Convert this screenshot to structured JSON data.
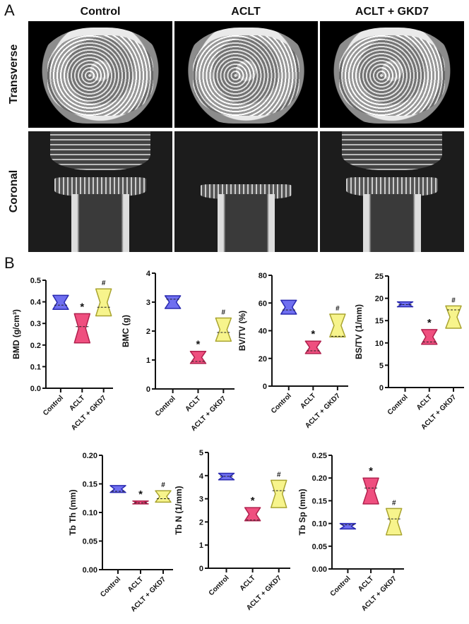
{
  "panel_a": {
    "letter": "A",
    "columns": [
      "Control",
      "ACLT",
      "ACLT + GKD7"
    ],
    "rows": [
      "Transverse",
      "Coronal"
    ]
  },
  "panel_b": {
    "letter": "B"
  },
  "colors": {
    "Control": "#6f6ff0",
    "ACLT": "#ef4f7f",
    "ACLT + GKD7": "#f7f48c"
  },
  "chart_data": [
    {
      "type": "violin",
      "ylabel": "BMD (g/cm³)",
      "categories": [
        "Control",
        "ACLT",
        "ACLT + GKD7"
      ],
      "ylim": [
        0,
        0.5
      ],
      "yticks": [
        "0.0",
        "0.1",
        "0.2",
        "0.3",
        "0.4",
        "0.5"
      ],
      "groups": [
        {
          "min": 0.365,
          "median": 0.385,
          "max": 0.43,
          "mark": ""
        },
        {
          "min": 0.21,
          "median": 0.285,
          "max": 0.345,
          "mark": "*"
        },
        {
          "min": 0.335,
          "median": 0.375,
          "max": 0.46,
          "mark": "#"
        }
      ]
    },
    {
      "type": "violin",
      "ylabel": "BMC (g)",
      "categories": [
        "Control",
        "ACLT",
        "ACLT + GKD7"
      ],
      "ylim": [
        0,
        4
      ],
      "yticks": [
        "0",
        "1",
        "2",
        "3",
        "4"
      ],
      "groups": [
        {
          "min": 2.78,
          "median": 3.1,
          "max": 3.22,
          "mark": ""
        },
        {
          "min": 0.88,
          "median": 0.95,
          "max": 1.3,
          "mark": "*"
        },
        {
          "min": 1.65,
          "median": 1.95,
          "max": 2.45,
          "mark": "#"
        }
      ]
    },
    {
      "type": "violin",
      "ylabel": "BV/TV (%)",
      "categories": [
        "Control",
        "ACLT",
        "ACLT + GKD7"
      ],
      "ylim": [
        0,
        80
      ],
      "yticks": [
        "0",
        "20",
        "40",
        "60",
        "80"
      ],
      "groups": [
        {
          "min": 52,
          "median": 55,
          "max": 62,
          "mark": ""
        },
        {
          "min": 23.5,
          "median": 25.5,
          "max": 32.5,
          "mark": "*"
        },
        {
          "min": 35.5,
          "median": 36,
          "max": 52,
          "mark": "#"
        }
      ]
    },
    {
      "type": "violin",
      "ylabel": "BS/TV (1/mm)",
      "categories": [
        "Control",
        "ACLT",
        "ACLT + GKD7"
      ],
      "ylim": [
        0,
        25
      ],
      "yticks": [
        "0",
        "5",
        "10",
        "15",
        "20",
        "25"
      ],
      "groups": [
        {
          "min": 18.1,
          "median": 18.6,
          "max": 19.2,
          "mark": ""
        },
        {
          "min": 9.7,
          "median": 10.2,
          "max": 13,
          "mark": "*"
        },
        {
          "min": 13.3,
          "median": 17.4,
          "max": 18.3,
          "mark": "#"
        }
      ]
    },
    {
      "type": "violin",
      "ylabel": "Tb Th (mm)",
      "categories": [
        "Control",
        "ACLT",
        "ACLT + GKD7"
      ],
      "ylim": [
        0,
        0.2
      ],
      "yticks": [
        "0.00",
        "0.05",
        "0.10",
        "0.15",
        "0.20"
      ],
      "groups": [
        {
          "min": 0.135,
          "median": 0.137,
          "max": 0.147,
          "mark": ""
        },
        {
          "min": 0.115,
          "median": 0.117,
          "max": 0.12,
          "mark": "*"
        },
        {
          "min": 0.118,
          "median": 0.124,
          "max": 0.138,
          "mark": "#"
        }
      ]
    },
    {
      "type": "violin",
      "ylabel": "Tb N (1/mm)",
      "categories": [
        "Control",
        "ACLT",
        "ACLT + GKD7"
      ],
      "ylim": [
        0,
        5
      ],
      "yticks": [
        "0",
        "1",
        "2",
        "3",
        "4",
        "5"
      ],
      "groups": [
        {
          "min": 3.82,
          "median": 3.97,
          "max": 4.1,
          "mark": ""
        },
        {
          "min": 2.05,
          "median": 2.08,
          "max": 2.62,
          "mark": "*"
        },
        {
          "min": 2.62,
          "median": 3.35,
          "max": 3.8,
          "mark": "#"
        }
      ]
    },
    {
      "type": "violin",
      "ylabel": "Tb Sp (mm)",
      "categories": [
        "Control",
        "ACLT",
        "ACLT + GKD7"
      ],
      "ylim": [
        0,
        0.25
      ],
      "yticks": [
        "0.00",
        "0.05",
        "0.10",
        "0.15",
        "0.20",
        "0.25"
      ],
      "groups": [
        {
          "min": 0.088,
          "median": 0.097,
          "max": 0.1,
          "mark": ""
        },
        {
          "min": 0.143,
          "median": 0.178,
          "max": 0.2,
          "mark": "*"
        },
        {
          "min": 0.075,
          "median": 0.11,
          "max": 0.133,
          "mark": "#"
        }
      ]
    }
  ]
}
